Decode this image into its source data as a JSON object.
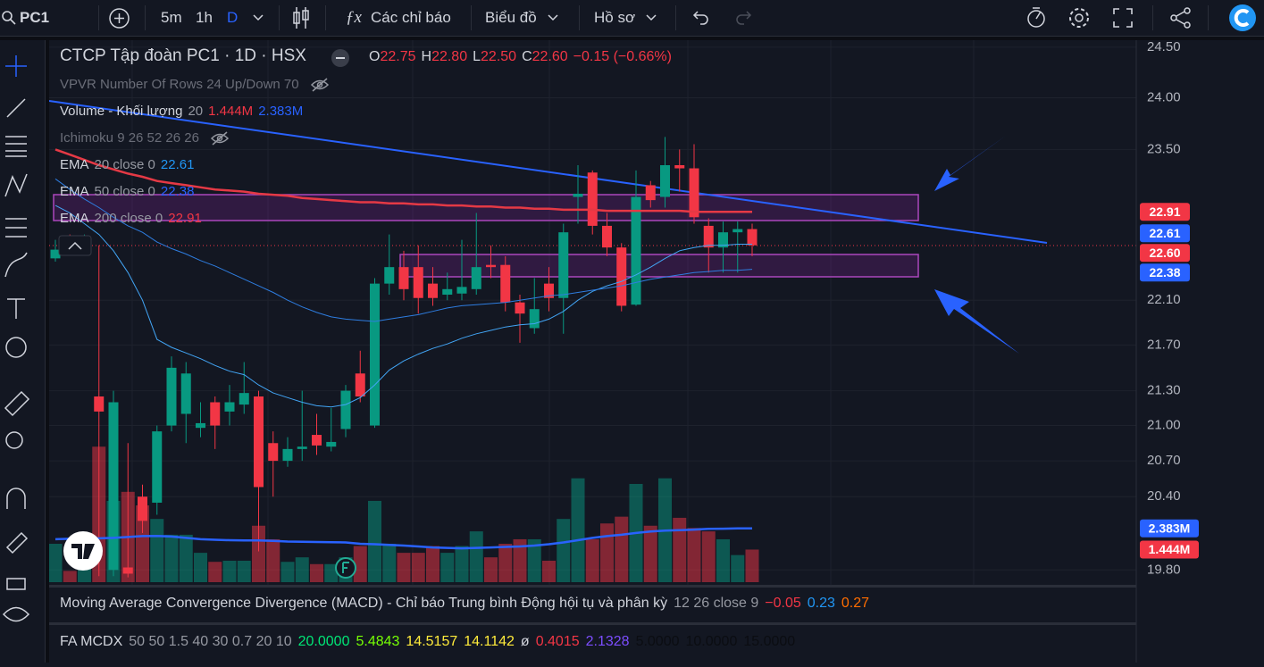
{
  "toolbar": {
    "symbol": "PC1",
    "intervals": [
      "5m",
      "1h",
      "D"
    ],
    "menus": [
      "Các chỉ báo",
      "Biểu đồ",
      "Hồ sơ"
    ]
  },
  "legend": {
    "title": "CTCP Tập đoàn PC1 · 1D · HSX",
    "ohlc": [
      {
        "key": "O",
        "value": "22.75"
      },
      {
        "key": "H",
        "value": "22.80"
      },
      {
        "key": "L",
        "value": "22.50"
      },
      {
        "key": "C",
        "value": "22.60"
      }
    ],
    "change": "−0.15 (−0.66%)",
    "indicators": [
      {
        "name": "VPVR Number Of Rows 24 Up/Down 70",
        "hidden": true
      },
      {
        "name": "Volume - Khối lượng",
        "params": "20",
        "values": [
          {
            "text": "1.444M",
            "color": "#f23645"
          },
          {
            "text": "2.383M",
            "color": "#2962ff"
          }
        ]
      },
      {
        "name": "Ichimoku 9 26 52 26 26",
        "hidden": true
      },
      {
        "name": "EMA",
        "params": "20 close 0",
        "values": [
          {
            "text": "22.61",
            "color": "#2196f3"
          }
        ]
      },
      {
        "name": "EMA",
        "params": "50 close 0",
        "values": [
          {
            "text": "22.38",
            "color": "#2962ff"
          }
        ]
      },
      {
        "name": "EMA",
        "params": "200 close 0",
        "values": [
          {
            "text": "22.91",
            "color": "#f23645"
          }
        ]
      }
    ]
  },
  "chart_data": {
    "type": "candlestick",
    "log_scale": true,
    "grid": true,
    "ylim": [
      19.68,
      24.57
    ],
    "yticks": [
      {
        "value": 24.5,
        "label": "24.50"
      },
      {
        "value": 24,
        "label": "24.00"
      },
      {
        "value": 23.5,
        "label": "23.50"
      },
      {
        "value": 22.1,
        "label": "22.10"
      },
      {
        "value": 21.7,
        "label": "21.70"
      },
      {
        "value": 21.3,
        "label": "21.30"
      },
      {
        "value": 21,
        "label": "21.00"
      },
      {
        "value": 20.7,
        "label": "20.70"
      },
      {
        "value": 20.4,
        "label": "20.40"
      },
      {
        "value": 19.8,
        "label": "19.80"
      }
    ],
    "up_color": "#089981",
    "down_color": "#f23645",
    "open": [
      22.48,
      22.65,
      22.58,
      21.25,
      19.8,
      19.82,
      20.4,
      20.35,
      21.0,
      21.1,
      20.98,
      21.2,
      21.12,
      21.18,
      21.25,
      20.85,
      20.7,
      20.8,
      20.92,
      20.82,
      20.97,
      21.45,
      21.0,
      22.25,
      22.4,
      22.4,
      22.25,
      22.15,
      22.16,
      22.2,
      22.42,
      22.42,
      22.08,
      21.85,
      22.25,
      22.12,
      23.05,
      23.28,
      22.78,
      22.58,
      22.06,
      23.16,
      23.05,
      23.35,
      23.32,
      22.78,
      22.58,
      22.72,
      22.75
    ],
    "high": [
      22.65,
      22.7,
      22.7,
      22.6,
      21.3,
      20.85,
      20.5,
      21.0,
      21.6,
      21.55,
      21.2,
      21.25,
      21.35,
      21.55,
      21.3,
      20.95,
      20.9,
      21.3,
      21.1,
      21.15,
      21.35,
      21.65,
      22.3,
      22.7,
      22.55,
      22.6,
      22.4,
      22.35,
      22.65,
      22.9,
      22.6,
      22.5,
      22.15,
      22.3,
      22.4,
      22.8,
      23.35,
      23.3,
      22.9,
      22.62,
      23.3,
      23.2,
      23.62,
      23.5,
      23.55,
      22.85,
      22.82,
      22.82,
      22.8
    ],
    "low": [
      22.45,
      22.55,
      22.55,
      19.75,
      19.75,
      19.74,
      20.1,
      20.25,
      20.95,
      20.85,
      20.9,
      20.8,
      21.0,
      21.1,
      19.95,
      20.4,
      20.65,
      20.7,
      20.75,
      20.78,
      20.9,
      21.2,
      20.98,
      22.15,
      22.1,
      21.98,
      22.05,
      22.1,
      22.1,
      22.15,
      22.3,
      22.0,
      21.72,
      21.8,
      22.0,
      21.8,
      22.8,
      22.7,
      22.5,
      22.0,
      22.05,
      22.95,
      22.95,
      23.1,
      22.8,
      22.35,
      22.35,
      22.35,
      22.5
    ],
    "close": [
      22.56,
      22.58,
      22.65,
      21.12,
      21.2,
      19.77,
      20.2,
      20.95,
      21.5,
      21.45,
      21.02,
      21.0,
      21.2,
      21.28,
      20.48,
      20.7,
      20.8,
      20.82,
      20.83,
      20.86,
      21.3,
      21.25,
      22.25,
      22.4,
      22.2,
      22.12,
      22.12,
      22.2,
      22.22,
      22.4,
      22.4,
      22.08,
      21.98,
      22.02,
      22.12,
      22.72,
      23.08,
      22.78,
      22.58,
      22.05,
      23.05,
      23.02,
      23.35,
      23.32,
      22.86,
      22.58,
      22.72,
      22.75,
      22.6
    ],
    "lines": [
      {
        "color": "#42a5f5",
        "width": 1,
        "values": [
          22.97,
          22.9,
          22.8,
          22.7,
          22.55,
          22.35,
          22.1,
          21.75,
          21.68,
          21.63,
          21.58,
          21.52,
          21.47,
          21.44,
          21.35,
          21.28,
          21.24,
          21.2,
          21.17,
          21.16,
          21.18,
          21.24,
          21.35,
          21.48,
          21.56,
          21.62,
          21.67,
          21.71,
          21.76,
          21.8,
          21.83,
          21.86,
          21.88,
          21.89,
          21.93,
          22.0,
          22.1,
          22.18,
          22.23,
          22.27,
          22.33,
          22.4,
          22.48,
          22.55,
          22.58,
          22.6,
          22.6,
          22.61,
          22.61
        ]
      },
      {
        "color": "#2e7de0",
        "width": 1,
        "values": [
          23.22,
          23.12,
          23.03,
          22.95,
          22.86,
          22.78,
          22.72,
          22.63,
          22.57,
          22.52,
          22.46,
          22.41,
          22.35,
          22.29,
          22.23,
          22.17,
          22.1,
          22.04,
          21.99,
          21.95,
          21.93,
          21.92,
          21.91,
          21.93,
          21.95,
          21.97,
          22.0,
          22.03,
          22.05,
          22.06,
          22.07,
          22.08,
          22.1,
          22.12,
          22.14,
          22.15,
          22.17,
          22.19,
          22.21,
          22.23,
          22.26,
          22.29,
          22.31,
          22.33,
          22.35,
          22.36,
          22.37,
          22.37,
          22.38
        ]
      },
      {
        "color": "#e53945",
        "width": 2.5,
        "values": [
          23.5,
          23.45,
          23.4,
          23.35,
          23.31,
          23.27,
          23.24,
          23.2,
          23.18,
          23.16,
          23.14,
          23.12,
          23.11,
          23.1,
          23.08,
          23.07,
          23.06,
          23.04,
          23.03,
          23.02,
          23.01,
          23.0,
          23.0,
          22.99,
          22.99,
          22.98,
          22.98,
          22.97,
          22.97,
          22.96,
          22.96,
          22.95,
          22.95,
          22.94,
          22.94,
          22.93,
          22.93,
          22.93,
          22.92,
          22.92,
          22.92,
          22.92,
          22.92,
          22.92,
          22.91,
          22.91,
          22.91,
          22.91,
          22.91
        ]
      }
    ],
    "volume": {
      "ylim": [
        0,
        24000000
      ],
      "up_color": "rgba(8,153,129,0.5)",
      "down_color": "rgba(242,54,69,0.5)",
      "values": [
        1700000,
        500000,
        900000,
        6000000,
        3600000,
        4000000,
        3400000,
        2800000,
        2100000,
        2100000,
        1300000,
        900000,
        950000,
        950000,
        2500000,
        1900000,
        900000,
        1100000,
        800000,
        800000,
        1100000,
        1600000,
        3600000,
        1700000,
        1300000,
        1300000,
        1600000,
        1300000,
        1600000,
        2250000,
        1100000,
        1700000,
        1900000,
        1900000,
        950000,
        2800000,
        4600000,
        1900000,
        2600000,
        2900000,
        4350000,
        2500000,
        4600000,
        2850000,
        2400000,
        2250000,
        1900000,
        1200000,
        1444000
      ],
      "ma_color": "#2962ff",
      "ma": [
        1900000,
        1920000,
        1940000,
        1940000,
        1960000,
        2000000,
        2040000,
        2050000,
        2020000,
        1960000,
        1900000,
        1880000,
        1860000,
        1850000,
        1850000,
        1830000,
        1800000,
        1790000,
        1780000,
        1770000,
        1760000,
        1700000,
        1680000,
        1650000,
        1620000,
        1580000,
        1540000,
        1520000,
        1500000,
        1520000,
        1540000,
        1560000,
        1580000,
        1620000,
        1680000,
        1760000,
        1860000,
        1960000,
        2040000,
        2100000,
        2180000,
        2240000,
        2280000,
        2300000,
        2330000,
        2360000,
        2370000,
        2380000,
        2383000
      ]
    },
    "price_labels": [
      {
        "value": 22.91,
        "label": "22.91",
        "color": "#f23645"
      },
      {
        "value": 22.61,
        "label": "22.61",
        "color": "#2962ff"
      },
      {
        "value": 22.6,
        "label": "22.60",
        "color": "#f23645"
      },
      {
        "value": 22.38,
        "label": "22.38",
        "color": "#2962ff"
      }
    ],
    "volume_labels": [
      {
        "value": 2383000,
        "label": "2.383M",
        "color": "#2962ff"
      },
      {
        "value": 1444000,
        "label": "1.444M",
        "color": "#f23645"
      }
    ]
  },
  "panes": [
    {
      "name": "Moving Average Convergence Divergence (MACD) - Chỉ báo Trung bình Động hội tụ và phân kỳ",
      "params": "12 26 close 9",
      "values": [
        {
          "text": "−0.05",
          "color": "#f23645"
        },
        {
          "text": "0.23",
          "color": "#2196f3"
        },
        {
          "text": "0.27",
          "color": "#ff6d00"
        }
      ]
    },
    {
      "name": "FA MCDX",
      "params": "50 50 1.5 40 30 0.7 20 10",
      "values": [
        {
          "text": "20.0000",
          "color": "#00e676"
        },
        {
          "text": "5.4843",
          "color": "#76ff03"
        },
        {
          "text": "14.5157",
          "color": "#ffeb3b"
        },
        {
          "text": "14.1142",
          "color": "#ffeb3b"
        },
        {
          "text": "ø",
          "color": "#d1d4dc"
        },
        {
          "text": "0.4015",
          "color": "#f23645"
        },
        {
          "text": "2.1328",
          "color": "#7c4dff"
        },
        {
          "text": "5.0000",
          "color": "#0b0d12"
        },
        {
          "text": "10.0000",
          "color": "#0b0d12"
        },
        {
          "text": "15.0000",
          "color": "#0b0d12"
        }
      ]
    }
  ]
}
